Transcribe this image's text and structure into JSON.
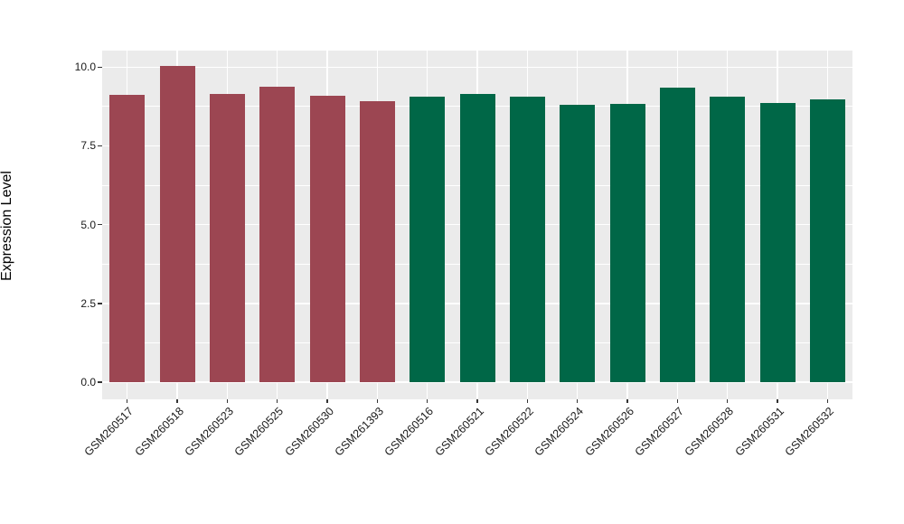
{
  "chart_data": {
    "type": "bar",
    "title": "",
    "xlabel": "",
    "ylabel": "Expression Level",
    "legend_position": "none",
    "grid": true,
    "categories": [
      "GSM260517",
      "GSM260518",
      "GSM260523",
      "GSM260525",
      "GSM260530",
      "GSM261393",
      "GSM260516",
      "GSM260521",
      "GSM260522",
      "GSM260524",
      "GSM260526",
      "GSM260527",
      "GSM260528",
      "GSM260531",
      "GSM260532"
    ],
    "values": [
      9.12,
      10.03,
      9.15,
      9.38,
      9.1,
      8.93,
      9.06,
      9.15,
      9.07,
      8.81,
      8.84,
      9.35,
      9.06,
      8.85,
      8.98
    ],
    "bar_colors": [
      "#9C4652",
      "#9C4652",
      "#9C4652",
      "#9C4652",
      "#9C4652",
      "#9C4652",
      "#006747",
      "#006747",
      "#006747",
      "#006747",
      "#006747",
      "#006747",
      "#006747",
      "#006747",
      "#006747"
    ],
    "groups": [
      1,
      1,
      1,
      1,
      1,
      1,
      2,
      2,
      2,
      2,
      2,
      2,
      2,
      2,
      2
    ],
    "group_colors": {
      "group1": "#9C4652",
      "group2": "#006747"
    },
    "ylim": [
      0,
      10.5
    ],
    "yticks": [
      0,
      2.5,
      5,
      7.5,
      10
    ],
    "ytick_labels": [
      "0.0",
      "2.5",
      "5.0",
      "7.5",
      "10.0"
    ],
    "panel_background": "#EBEBEB",
    "grid_color": "#FFFFFF"
  }
}
